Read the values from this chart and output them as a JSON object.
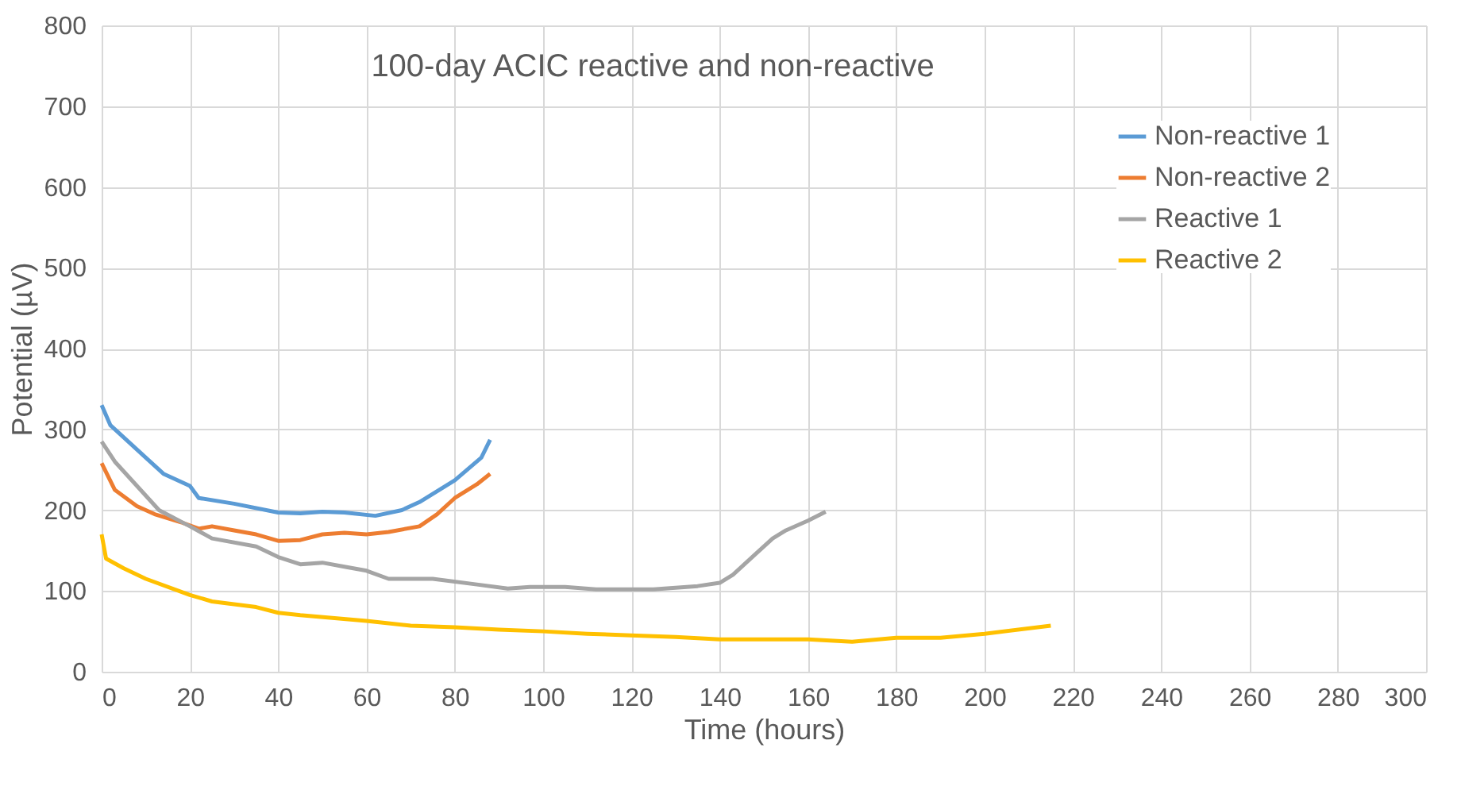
{
  "chart_data": {
    "type": "line",
    "title": "100-day ACIC reactive and non-reactive",
    "xlabel": "Time (hours)",
    "ylabel": "Potential (µV)",
    "xlim": [
      0,
      300
    ],
    "xticks": [
      0,
      20,
      40,
      60,
      80,
      100,
      120,
      140,
      160,
      180,
      200,
      220,
      240,
      260,
      280,
      300
    ],
    "ylim": [
      0,
      800
    ],
    "yticks": [
      0,
      100,
      200,
      300,
      400,
      500,
      600,
      700,
      800
    ],
    "grid": true,
    "legend": "top right",
    "series": [
      {
        "name": "Non-reactive 1",
        "color": "#5b9bd5",
        "x": [
          0,
          2,
          5,
          10,
          14,
          20,
          22,
          30,
          40,
          45,
          50,
          55,
          62,
          68,
          72,
          80,
          86,
          88
        ],
        "values": [
          330,
          305,
          290,
          265,
          245,
          230,
          215,
          208,
          197,
          196,
          198,
          197,
          193,
          200,
          210,
          237,
          265,
          287
        ]
      },
      {
        "name": "Non-reactive 2",
        "color": "#ed7d31",
        "x": [
          0,
          3,
          8,
          12,
          18,
          22,
          25,
          30,
          35,
          40,
          45,
          50,
          55,
          60,
          65,
          72,
          76,
          80,
          85,
          88
        ],
        "values": [
          258,
          225,
          205,
          195,
          185,
          177,
          180,
          175,
          170,
          162,
          163,
          170,
          172,
          170,
          173,
          180,
          195,
          215,
          232,
          245
        ]
      },
      {
        "name": "Reactive 1",
        "color": "#a5a5a5",
        "x": [
          0,
          3,
          8,
          13,
          20,
          25,
          35,
          40,
          45,
          50,
          55,
          60,
          65,
          75,
          85,
          92,
          97,
          105,
          112,
          125,
          135,
          140,
          143,
          148,
          152,
          155,
          160,
          164
        ],
        "values": [
          285,
          260,
          230,
          200,
          180,
          165,
          155,
          142,
          133,
          135,
          130,
          125,
          115,
          115,
          108,
          103,
          105,
          105,
          102,
          102,
          106,
          110,
          120,
          145,
          165,
          175,
          187,
          198
        ]
      },
      {
        "name": "Reactive 2",
        "color": "#ffc000",
        "x": [
          0,
          1,
          5,
          10,
          20,
          25,
          35,
          40,
          45,
          60,
          70,
          80,
          90,
          100,
          110,
          120,
          130,
          140,
          150,
          160,
          170,
          180,
          190,
          200,
          215
        ],
        "values": [
          170,
          140,
          128,
          115,
          95,
          87,
          80,
          73,
          70,
          63,
          57,
          55,
          52,
          50,
          47,
          45,
          43,
          40,
          40,
          40,
          37,
          42,
          42,
          47,
          57
        ]
      }
    ]
  }
}
